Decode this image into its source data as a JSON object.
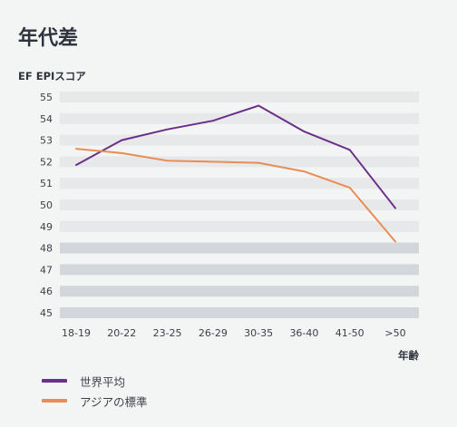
{
  "title": "年代差",
  "chart_data": {
    "type": "line",
    "ylabel": "EF EPIスコア",
    "xlabel": "年齢",
    "categories": [
      "18-19",
      "20-22",
      "23-25",
      "26-29",
      "30-35",
      "36-40",
      "41-50",
      ">50"
    ],
    "ylim": [
      45,
      55
    ],
    "yticks": [
      55,
      54,
      53,
      52,
      51,
      50,
      49,
      48,
      47,
      46,
      45
    ],
    "series": [
      {
        "name": "世界平均",
        "color": "#6b2f8a",
        "values": [
          51.85,
          53.0,
          53.5,
          53.9,
          54.6,
          53.4,
          52.55,
          49.85
        ]
      },
      {
        "name": "アジアの標準",
        "color": "#ea8c55",
        "values": [
          52.6,
          52.4,
          52.05,
          52.0,
          51.95,
          51.55,
          50.8,
          48.3
        ]
      }
    ],
    "legend_position": "bottom-left"
  }
}
